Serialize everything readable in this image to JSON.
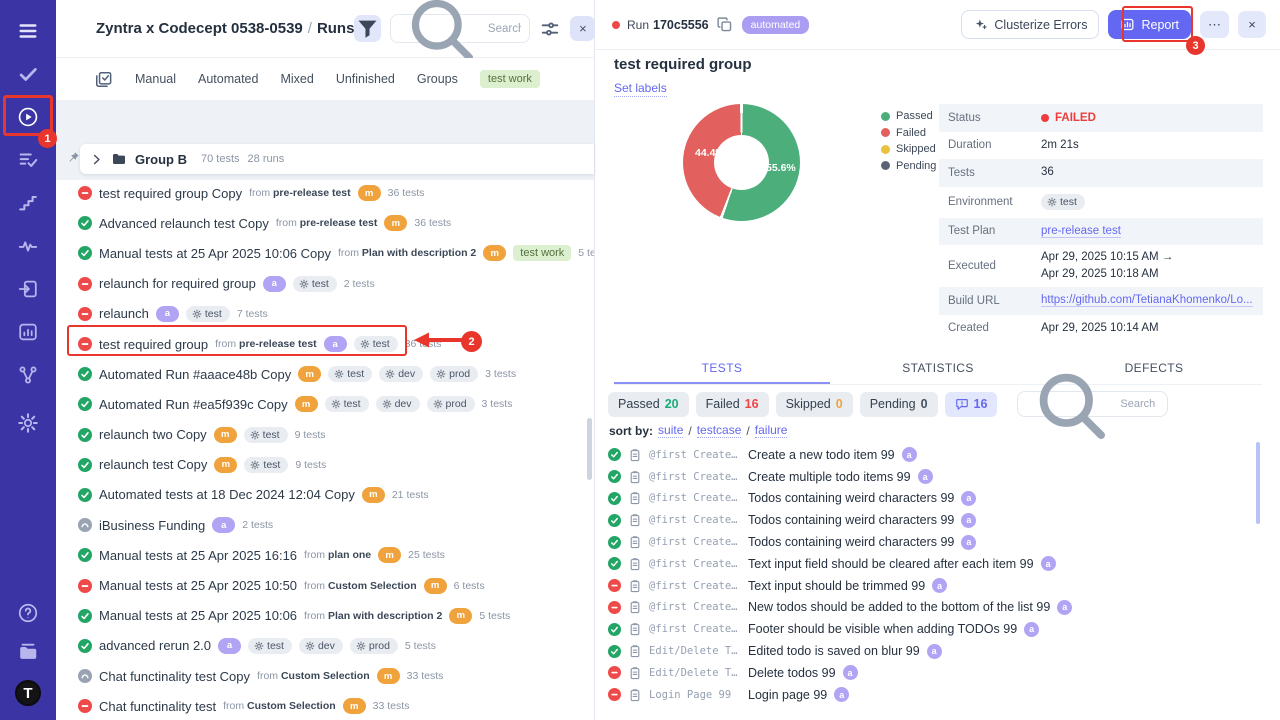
{
  "sidebar": {
    "top_icons": [
      {
        "name": "menu-icon"
      },
      {
        "name": "tasks-check-icon"
      },
      {
        "name": "runs-play-icon",
        "active": true,
        "annotated": true
      },
      {
        "name": "list-check-icon"
      },
      {
        "name": "steps-icon"
      },
      {
        "name": "activity-icon"
      },
      {
        "name": "import-icon"
      },
      {
        "name": "report-box-icon"
      },
      {
        "name": "branch-icon"
      },
      {
        "name": "gear-icon",
        "extra_gap": true
      }
    ],
    "bottom_icons": [
      {
        "name": "help-icon"
      },
      {
        "name": "library-icon"
      }
    ],
    "avatar_letter": "T"
  },
  "runs_panel": {
    "title": "Zyntra x Codecept 0538-0539",
    "separator": "/",
    "subtitle": "Runs",
    "search_placeholder": "Search [Cmd + K]",
    "close_label": "×",
    "tabs": [
      "Manual",
      "Automated",
      "Mixed",
      "Unfinished",
      "Groups"
    ],
    "tab_chip": "test work",
    "group": {
      "name": "Group B",
      "tests": "70 tests",
      "runs": "28 runs"
    },
    "from_label": "from",
    "runs": [
      {
        "status": "failed",
        "name": "test required group Copy",
        "from": "pre-release test",
        "badge": "m",
        "envs": [],
        "tests": "36 tests"
      },
      {
        "status": "passed",
        "name": "Advanced relaunch test Copy",
        "from": "pre-release test",
        "badge": "m",
        "envs": [],
        "tests": "36 tests"
      },
      {
        "status": "passed",
        "name": "Manual tests at 25 Apr 2025 10:06 Copy",
        "from": "Plan with description 2",
        "badge": "m",
        "envs": [],
        "chip": "test work",
        "tests": "5 tests"
      },
      {
        "status": "failed",
        "name": "relaunch for required group",
        "badge": "a",
        "envs": [
          "test"
        ],
        "tests": "2 tests"
      },
      {
        "status": "failed",
        "name": "relaunch",
        "badge": "a",
        "envs": [
          "test"
        ],
        "tests": "7 tests"
      },
      {
        "status": "failed",
        "name": "test required group",
        "from": "pre-release test",
        "badge": "a",
        "envs": [
          "test"
        ],
        "tests": "36 tests",
        "annotated": true
      },
      {
        "status": "passed",
        "name": "Automated Run #aaace48b Copy",
        "badge": "m",
        "envs": [
          "test",
          "dev",
          "prod"
        ],
        "tests": "3 tests"
      },
      {
        "status": "passed",
        "name": "Automated Run #ea5f939c Copy",
        "badge": "m",
        "envs": [
          "test",
          "dev",
          "prod"
        ],
        "tests": "3 tests"
      },
      {
        "status": "passed",
        "name": "relaunch two Copy",
        "badge": "m",
        "envs": [
          "test"
        ],
        "tests": "9 tests"
      },
      {
        "status": "passed",
        "name": "relaunch test Copy",
        "badge": "m",
        "envs": [
          "test"
        ],
        "tests": "9 tests"
      },
      {
        "status": "passed",
        "name": "Automated tests at 18 Dec 2024 12:04 Copy",
        "badge": "m",
        "envs": [],
        "tests": "21 tests"
      },
      {
        "status": "neutral",
        "name": "iBusiness Funding",
        "badge": "a",
        "envs": [],
        "tests": "2 tests"
      },
      {
        "status": "passed",
        "name": "Manual tests at 25 Apr 2025 16:16",
        "from": "plan one",
        "badge": "m",
        "envs": [],
        "tests": "25 tests"
      },
      {
        "status": "failed",
        "name": "Manual tests at 25 Apr 2025 10:50",
        "from": "Custom Selection",
        "badge": "m",
        "envs": [],
        "tests": "6 tests"
      },
      {
        "status": "passed",
        "name": "Manual tests at 25 Apr 2025 10:06",
        "from": "Plan with description 2",
        "badge": "m",
        "envs": [],
        "tests": "5 tests"
      },
      {
        "status": "passed",
        "name": "advanced rerun 2.0",
        "badge": "a",
        "envs": [
          "test",
          "dev",
          "prod"
        ],
        "tests": "5 tests"
      },
      {
        "status": "neutral",
        "name": "Chat functinality test Copy",
        "from": "Custom Selection",
        "badge": "m",
        "envs": [],
        "tests": "33 tests"
      },
      {
        "status": "failed",
        "name": "Chat functinality test",
        "from": "Custom Selection",
        "badge": "m",
        "envs": [],
        "tests": "33 tests"
      }
    ]
  },
  "detail_panel": {
    "run_label": "Run",
    "run_id": "170c5556",
    "run_chip": "automated",
    "buttons": {
      "clusterize": "Clusterize Errors",
      "report": "Report",
      "more": "⋯",
      "close": "×"
    },
    "title": "test required group",
    "set_labels": "Set labels",
    "chart_data": {
      "type": "pie",
      "donut": true,
      "labels": [
        "Passed",
        "Failed",
        "Skipped",
        "Pending"
      ],
      "values_pct": [
        55.6,
        44.4,
        0,
        0
      ],
      "counts": [
        20,
        16,
        0,
        0
      ],
      "total_tests": 36,
      "colors": [
        "#4caf7b",
        "#e2605e",
        "#e7c13f",
        "#5a6474"
      ],
      "legend_position": "right"
    },
    "info_rows": [
      {
        "label": "Status",
        "type": "status",
        "value": "FAILED"
      },
      {
        "label": "Duration",
        "type": "text",
        "value": "2m 21s"
      },
      {
        "label": "Tests",
        "type": "text",
        "value": "36"
      },
      {
        "label": "Environment",
        "type": "env",
        "value": "test"
      },
      {
        "label": "Test Plan",
        "type": "link",
        "value": "pre-release test"
      },
      {
        "label": "Executed",
        "type": "text",
        "value": "Apr 29, 2025 10:15 AM →\nApr 29, 2025 10:18 AM"
      },
      {
        "label": "Build URL",
        "type": "link",
        "value": "https://github.com/TetianaKhomenko/Lo..."
      },
      {
        "label": "Created",
        "type": "text",
        "value": "Apr 29, 2025 10:14 AM"
      }
    ],
    "tabs": [
      {
        "label": "TESTS",
        "active": true
      },
      {
        "label": "STATISTICS"
      },
      {
        "label": "DEFECTS"
      }
    ],
    "filter_chips": [
      {
        "label": "Passed",
        "count": "20",
        "count_color": "#1cab77"
      },
      {
        "label": "Failed",
        "count": "16",
        "count_color": "#ef4444"
      },
      {
        "label": "Skipped",
        "count": "0",
        "count_color": "#f0a33c"
      },
      {
        "label": "Pending",
        "count": "0",
        "count_color": "#44505f"
      }
    ],
    "comment_chip_count": "16",
    "search_placeholder": "Search by title/message",
    "sort": {
      "label": "sort by:",
      "options": [
        "suite",
        "testcase",
        "failure"
      ]
    },
    "tests": [
      {
        "status": "passed",
        "suite": "@first Create…",
        "name": "Create a new todo item 99",
        "badge": "a"
      },
      {
        "status": "passed",
        "suite": "@first Create…",
        "name": "Create multiple todo items 99",
        "badge": "a"
      },
      {
        "status": "passed",
        "suite": "@first Create…",
        "name": "Todos containing weird characters 99",
        "badge": "a"
      },
      {
        "status": "passed",
        "suite": "@first Create…",
        "name": "Todos containing weird characters 99",
        "badge": "a"
      },
      {
        "status": "passed",
        "suite": "@first Create…",
        "name": "Todos containing weird characters 99",
        "badge": "a"
      },
      {
        "status": "passed",
        "suite": "@first Create…",
        "name": "Text input field should be cleared after each item 99",
        "badge": "a"
      },
      {
        "status": "failed",
        "suite": "@first Create…",
        "name": "Text input should be trimmed 99",
        "badge": "a"
      },
      {
        "status": "failed",
        "suite": "@first Create…",
        "name": "New todos should be added to the bottom of the list 99",
        "badge": "a"
      },
      {
        "status": "passed",
        "suite": "@first Create…",
        "name": "Footer should be visible when adding TODOs 99",
        "badge": "a"
      },
      {
        "status": "passed",
        "suite": "Edit/Delete T…",
        "name": "Edited todo is saved on blur 99",
        "badge": "a"
      },
      {
        "status": "failed",
        "suite": "Edit/Delete T…",
        "name": "Delete todos 99",
        "badge": "a"
      },
      {
        "status": "failed",
        "suite": "Login Page 99",
        "name": "Login page 99",
        "badge": "a"
      }
    ]
  },
  "annotations": {
    "step1": "1",
    "step2": "2",
    "step3": "3"
  }
}
